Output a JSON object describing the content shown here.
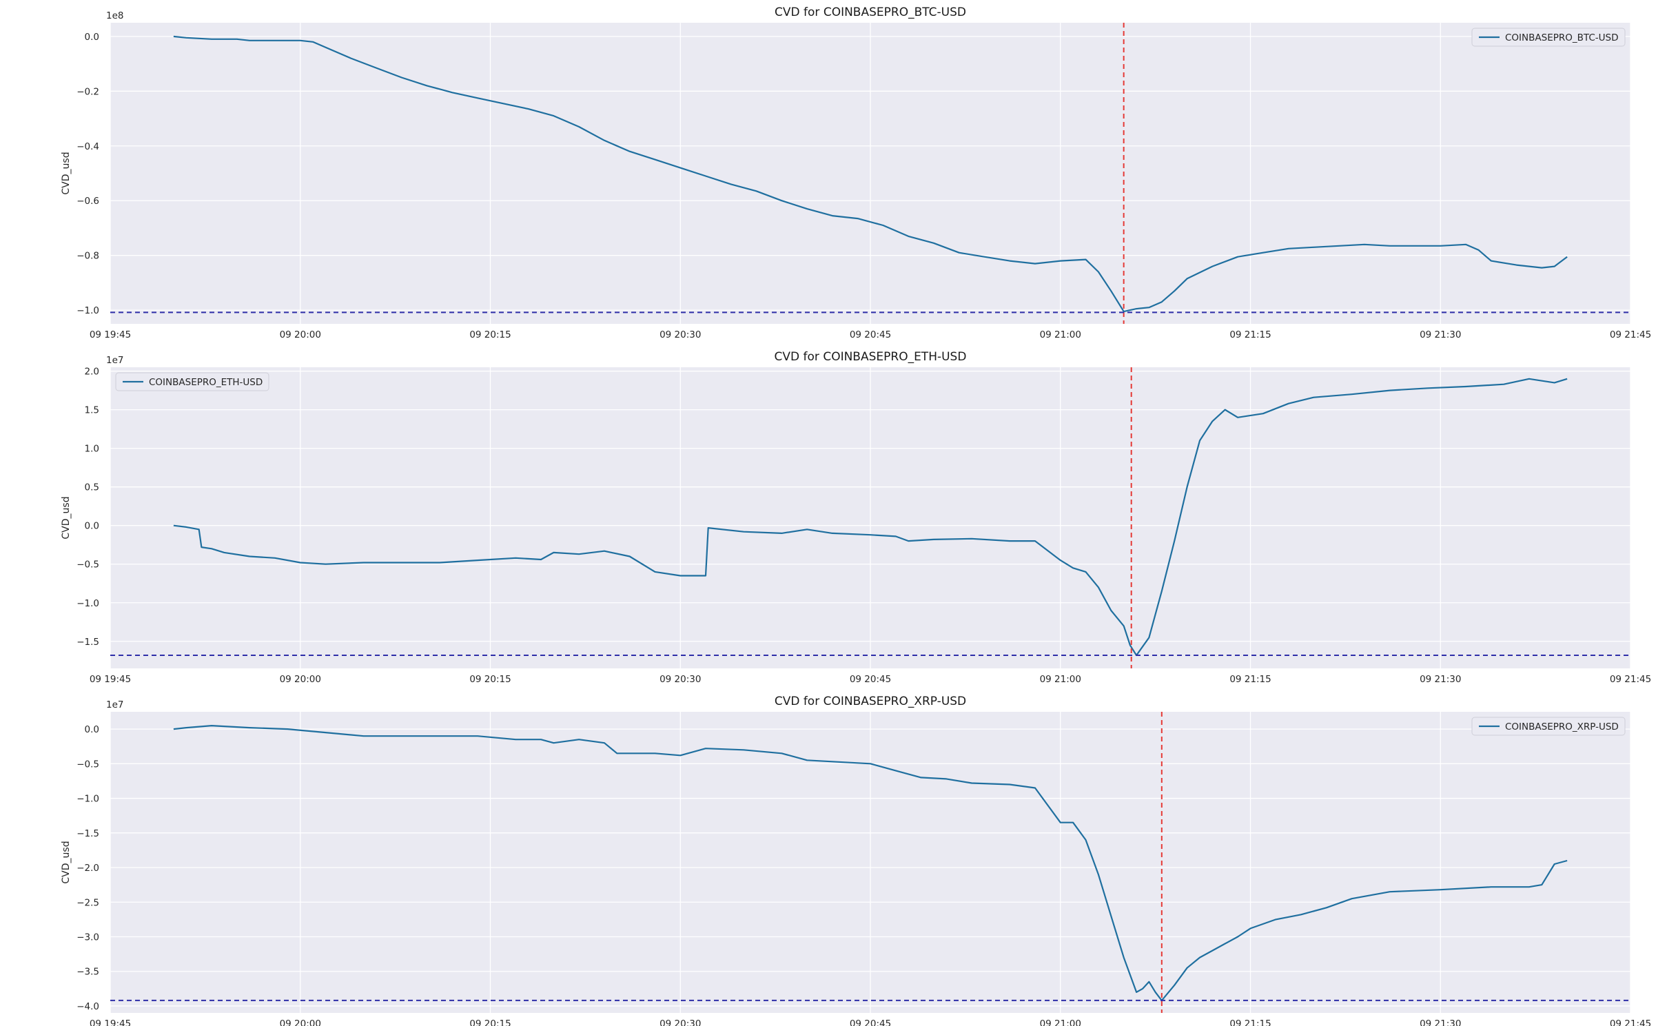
{
  "chart_data": [
    {
      "type": "line",
      "title": "CVD for COINBASEPRO_BTC-USD",
      "ylabel": "CVD_usd",
      "offset_label": "1e8",
      "xlim": [
        "09 19:45",
        "09 21:45"
      ],
      "ylim": [
        -1.05,
        0.05
      ],
      "xticks": [
        "09 19:45",
        "09 20:00",
        "09 20:15",
        "09 20:30",
        "09 20:45",
        "09 21:00",
        "09 21:15",
        "09 21:30",
        "09 21:45"
      ],
      "yticks": [
        0.0,
        -0.2,
        -0.4,
        -0.6,
        -0.8,
        -1.0
      ],
      "ytick_labels": [
        "0.0",
        "−0.2",
        "−0.4",
        "−0.6",
        "−0.8",
        "−1.0"
      ],
      "legend": {
        "label": "COINBASEPRO_BTC-USD",
        "position": "upper right"
      },
      "vline_x": "09 21:05",
      "hline_y": -1.008,
      "series": [
        {
          "name": "COINBASEPRO_BTC-USD",
          "color": "#1f6f9f",
          "x": [
            "09 19:50",
            "09 19:51",
            "09 19:53",
            "09 19:55",
            "09 19:56",
            "09 19:58",
            "09 20:00",
            "09 20:01",
            "09 20:02",
            "09 20:04",
            "09 20:06",
            "09 20:08",
            "09 20:10",
            "09 20:12",
            "09 20:14",
            "09 20:16",
            "09 20:18",
            "09 20:20",
            "09 20:22",
            "09 20:24",
            "09 20:26",
            "09 20:28",
            "09 20:30",
            "09 20:32",
            "09 20:34",
            "09 20:36",
            "09 20:38",
            "09 20:40",
            "09 20:42",
            "09 20:44",
            "09 20:46",
            "09 20:48",
            "09 20:50",
            "09 20:52",
            "09 20:54",
            "09 20:56",
            "09 20:58",
            "09 21:00",
            "09 21:02",
            "09 21:03",
            "09 21:04",
            "09 21:05",
            "09 21:06",
            "09 21:07",
            "09 21:08",
            "09 21:09",
            "09 21:10",
            "09 21:12",
            "09 21:14",
            "09 21:16",
            "09 21:18",
            "09 21:20",
            "09 21:22",
            "09 21:24",
            "09 21:26",
            "09 21:28",
            "09 21:30",
            "09 21:32",
            "09 21:33",
            "09 21:34",
            "09 21:36",
            "09 21:38",
            "09 21:39",
            "09 21:40"
          ],
          "y": [
            0.0,
            -0.005,
            -0.01,
            -0.01,
            -0.015,
            -0.015,
            -0.015,
            -0.02,
            -0.04,
            -0.08,
            -0.115,
            -0.15,
            -0.18,
            -0.205,
            -0.225,
            -0.245,
            -0.265,
            -0.29,
            -0.33,
            -0.38,
            -0.42,
            -0.45,
            -0.48,
            -0.51,
            -0.54,
            -0.565,
            -0.6,
            -0.63,
            -0.655,
            -0.665,
            -0.69,
            -0.73,
            -0.755,
            -0.79,
            -0.805,
            -0.82,
            -0.83,
            -0.82,
            -0.815,
            -0.86,
            -0.93,
            -1.005,
            -0.995,
            -0.99,
            -0.97,
            -0.93,
            -0.885,
            -0.84,
            -0.805,
            -0.79,
            -0.775,
            -0.77,
            -0.765,
            -0.76,
            -0.765,
            -0.765,
            -0.765,
            -0.76,
            -0.78,
            -0.82,
            -0.835,
            -0.845,
            -0.84,
            -0.805
          ]
        }
      ]
    },
    {
      "type": "line",
      "title": "CVD for COINBASEPRO_ETH-USD",
      "ylabel": "CVD_usd",
      "offset_label": "1e7",
      "xlim": [
        "09 19:45",
        "09 21:45"
      ],
      "ylim": [
        -1.85,
        2.05
      ],
      "xticks": [
        "09 19:45",
        "09 20:00",
        "09 20:15",
        "09 20:30",
        "09 20:45",
        "09 21:00",
        "09 21:15",
        "09 21:30",
        "09 21:45"
      ],
      "yticks": [
        2.0,
        1.5,
        1.0,
        0.5,
        0.0,
        -0.5,
        -1.0,
        -1.5
      ],
      "ytick_labels": [
        "2.0",
        "1.5",
        "1.0",
        "0.5",
        "0.0",
        "−0.5",
        "−1.0",
        "−1.5"
      ],
      "legend": {
        "label": "COINBASEPRO_ETH-USD",
        "position": "upper left"
      },
      "vline_x": "09 21:05.6",
      "hline_y": -1.68,
      "series": [
        {
          "name": "COINBASEPRO_ETH-USD",
          "color": "#1f6f9f",
          "x": [
            "09 19:50",
            "09 19:51",
            "09 19:52",
            "09 19:52.2",
            "09 19:53",
            "09 19:54",
            "09 19:56",
            "09 19:58",
            "09 20:00",
            "09 20:02",
            "09 20:05",
            "09 20:08",
            "09 20:11",
            "09 20:14",
            "09 20:17",
            "09 20:19",
            "09 20:20",
            "09 20:22",
            "09 20:24",
            "09 20:26",
            "09 20:28",
            "09 20:30",
            "09 20:32",
            "09 20:32.2",
            "09 20:35",
            "09 20:38",
            "09 20:40",
            "09 20:42",
            "09 20:45",
            "09 20:47",
            "09 20:48",
            "09 20:50",
            "09 20:53",
            "09 20:56",
            "09 20:58",
            "09 21:00",
            "09 21:01",
            "09 21:02",
            "09 21:03",
            "09 21:04",
            "09 21:05",
            "09 21:05.5",
            "09 21:06",
            "09 21:07",
            "09 21:08",
            "09 21:09",
            "09 21:10",
            "09 21:11",
            "09 21:12",
            "09 21:13",
            "09 21:14",
            "09 21:16",
            "09 21:18",
            "09 21:20",
            "09 21:23",
            "09 21:26",
            "09 21:29",
            "09 21:32",
            "09 21:35",
            "09 21:37",
            "09 21:39",
            "09 21:40"
          ],
          "y": [
            0.0,
            -0.02,
            -0.05,
            -0.28,
            -0.3,
            -0.35,
            -0.4,
            -0.42,
            -0.48,
            -0.5,
            -0.48,
            -0.48,
            -0.48,
            -0.45,
            -0.42,
            -0.44,
            -0.35,
            -0.37,
            -0.33,
            -0.4,
            -0.6,
            -0.65,
            -0.65,
            -0.03,
            -0.08,
            -0.1,
            -0.05,
            -0.1,
            -0.12,
            -0.14,
            -0.2,
            -0.18,
            -0.17,
            -0.2,
            -0.2,
            -0.45,
            -0.55,
            -0.6,
            -0.8,
            -1.1,
            -1.3,
            -1.55,
            -1.68,
            -1.45,
            -0.85,
            -0.2,
            0.5,
            1.1,
            1.35,
            1.5,
            1.4,
            1.45,
            1.58,
            1.66,
            1.7,
            1.75,
            1.78,
            1.8,
            1.83,
            1.9,
            1.85,
            1.9
          ]
        }
      ]
    },
    {
      "type": "line",
      "title": "CVD for COINBASEPRO_XRP-USD",
      "ylabel": "CVD_usd",
      "offset_label": "1e7",
      "xlim": [
        "09 19:45",
        "09 21:45"
      ],
      "ylim": [
        -4.1,
        0.25
      ],
      "xticks": [
        "09 19:45",
        "09 20:00",
        "09 20:15",
        "09 20:30",
        "09 20:45",
        "09 21:00",
        "09 21:15",
        "09 21:30",
        "09 21:45"
      ],
      "yticks": [
        0.0,
        -0.5,
        -1.0,
        -1.5,
        -2.0,
        -2.5,
        -3.0,
        -3.5,
        -4.0
      ],
      "ytick_labels": [
        "0.0",
        "−0.5",
        "−1.0",
        "−1.5",
        "−2.0",
        "−2.5",
        "−3.0",
        "−3.5",
        "−4.0"
      ],
      "legend": {
        "label": "COINBASEPRO_XRP-USD",
        "position": "upper right"
      },
      "vline_x": "09 21:08",
      "hline_y": -3.92,
      "series": [
        {
          "name": "COINBASEPRO_XRP-USD",
          "color": "#1f6f9f",
          "x": [
            "09 19:50",
            "09 19:51",
            "09 19:53",
            "09 19:56",
            "09 19:59",
            "09 20:02",
            "09 20:05",
            "09 20:08",
            "09 20:11",
            "09 20:14",
            "09 20:17",
            "09 20:19",
            "09 20:20",
            "09 20:22",
            "09 20:24",
            "09 20:25",
            "09 20:28",
            "09 20:30",
            "09 20:32",
            "09 20:35",
            "09 20:38",
            "09 20:40",
            "09 20:42",
            "09 20:45",
            "09 20:47",
            "09 20:49",
            "09 20:51",
            "09 20:53",
            "09 20:56",
            "09 20:58",
            "09 21:00",
            "09 21:01",
            "09 21:02",
            "09 21:03",
            "09 21:04",
            "09 21:05",
            "09 21:06",
            "09 21:06.5",
            "09 21:07",
            "09 21:07.5",
            "09 21:08",
            "09 21:09",
            "09 21:10",
            "09 21:11",
            "09 21:12",
            "09 21:13",
            "09 21:14",
            "09 21:15",
            "09 21:17",
            "09 21:19",
            "09 21:21",
            "09 21:23",
            "09 21:26",
            "09 21:30",
            "09 21:34",
            "09 21:37",
            "09 21:38",
            "09 21:39",
            "09 21:40"
          ],
          "y": [
            0.0,
            0.02,
            0.05,
            0.02,
            0.0,
            -0.05,
            -0.1,
            -0.1,
            -0.1,
            -0.1,
            -0.15,
            -0.15,
            -0.2,
            -0.15,
            -0.2,
            -0.35,
            -0.35,
            -0.38,
            -0.28,
            -0.3,
            -0.35,
            -0.45,
            -0.47,
            -0.5,
            -0.6,
            -0.7,
            -0.72,
            -0.78,
            -0.8,
            -0.85,
            -1.35,
            -1.35,
            -1.6,
            -2.1,
            -2.7,
            -3.3,
            -3.8,
            -3.75,
            -3.65,
            -3.8,
            -3.92,
            -3.7,
            -3.45,
            -3.3,
            -3.2,
            -3.1,
            -3.0,
            -2.88,
            -2.75,
            -2.68,
            -2.58,
            -2.45,
            -2.35,
            -2.32,
            -2.28,
            -2.28,
            -2.25,
            -1.95,
            -1.9
          ]
        }
      ]
    }
  ]
}
